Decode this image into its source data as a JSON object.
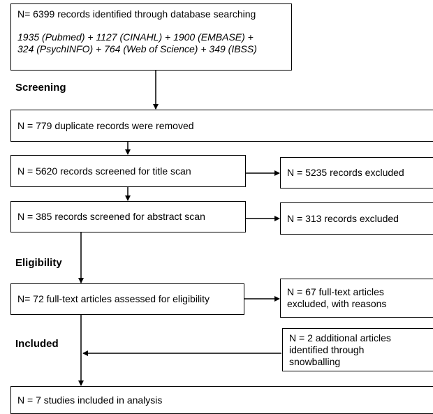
{
  "flowchart": {
    "identification": {
      "total": "N= 6399 records identified through database searching",
      "sources_line1": "1935 (Pubmed) + 1127 (CINAHL) + 1900 (EMBASE) +",
      "sources_line2": "324 (PsychINFO) + 764 (Web of Science) + 349 (IBSS)"
    },
    "stage_labels": {
      "screening": "Screening",
      "eligibility": "Eligibility",
      "included": "Included"
    },
    "duplicates": "N = 779 duplicate records were removed",
    "title_scan": "N = 5620 records screened for title scan",
    "title_excluded": "N = 5235 records  excluded",
    "abstract_scan": "N = 385 records screened for abstract scan",
    "abstract_excluded": "N = 313 records  excluded",
    "fulltext": "N= 72 full-text articles assessed for eligibility",
    "fulltext_excluded_line1": "N = 67 full-text articles",
    "fulltext_excluded_line2": "excluded, with reasons",
    "snowball_line1": "N = 2 additional articles",
    "snowball_line2": "identified through",
    "snowball_line3": "snowballing",
    "included_studies": "N = 7 studies included in analysis"
  }
}
